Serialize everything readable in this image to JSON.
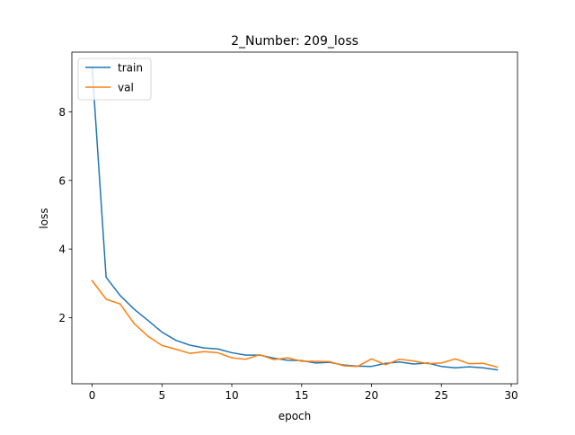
{
  "chart_data": {
    "type": "line",
    "title": "2_Number: 209_loss",
    "xlabel": "epoch",
    "ylabel": "loss",
    "xlim": [
      -1.45,
      30.45
    ],
    "ylim": [
      0.0746,
      9.7394
    ],
    "xticks": [
      0,
      5,
      10,
      15,
      20,
      25,
      30
    ],
    "yticks": [
      2,
      4,
      6,
      8
    ],
    "grid": false,
    "legend_position": "top-left",
    "x": [
      0,
      1,
      2,
      3,
      4,
      5,
      6,
      7,
      8,
      9,
      10,
      11,
      12,
      13,
      14,
      15,
      16,
      17,
      18,
      19,
      20,
      21,
      22,
      23,
      24,
      25,
      26,
      27,
      28,
      29
    ],
    "series": [
      {
        "name": "train",
        "color": "#1f77b4",
        "values": [
          9.3,
          3.18,
          2.65,
          2.25,
          1.92,
          1.58,
          1.34,
          1.2,
          1.12,
          1.09,
          0.98,
          0.91,
          0.91,
          0.82,
          0.76,
          0.75,
          0.68,
          0.7,
          0.62,
          0.59,
          0.58,
          0.67,
          0.71,
          0.65,
          0.68,
          0.58,
          0.54,
          0.57,
          0.54,
          0.48
        ]
      },
      {
        "name": "val",
        "color": "#ff7f0e",
        "values": [
          3.08,
          2.54,
          2.4,
          1.83,
          1.46,
          1.19,
          1.08,
          0.96,
          1.01,
          0.98,
          0.83,
          0.79,
          0.92,
          0.78,
          0.83,
          0.73,
          0.73,
          0.72,
          0.6,
          0.58,
          0.8,
          0.63,
          0.79,
          0.74,
          0.66,
          0.68,
          0.8,
          0.66,
          0.67,
          0.56
        ]
      }
    ]
  }
}
